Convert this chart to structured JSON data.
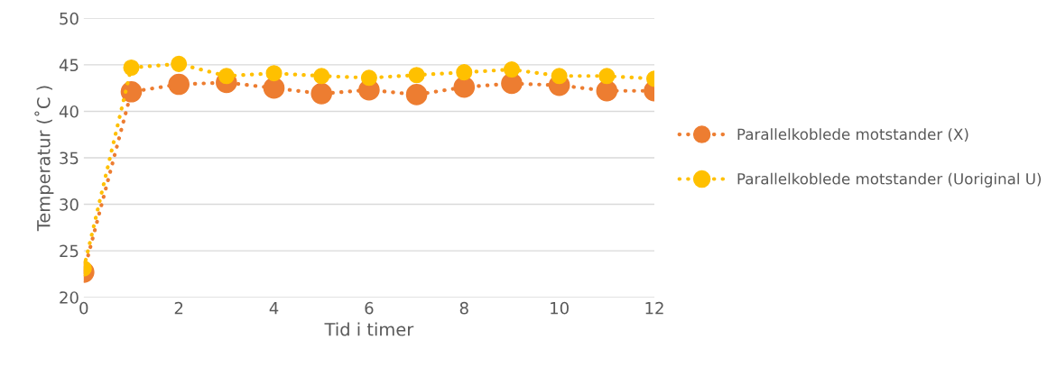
{
  "chart_data": {
    "type": "line",
    "xlabel": "Tid i timer",
    "ylabel": "Temperatur (˚C )",
    "x": [
      0,
      1,
      2,
      3,
      4,
      5,
      6,
      7,
      8,
      9,
      10,
      11,
      12
    ],
    "series": [
      {
        "name": "Parallelkoblede motstander (X)",
        "color": "#ed7d31",
        "values": [
          22.7,
          42.1,
          42.9,
          43.1,
          42.5,
          41.9,
          42.3,
          41.8,
          42.6,
          43.0,
          42.8,
          42.2,
          42.2
        ]
      },
      {
        "name": "Parallelkoblede motstander (Uoriginal U)",
        "color": "#ffc000",
        "values": [
          23.1,
          44.7,
          45.1,
          43.8,
          44.1,
          43.8,
          43.6,
          43.9,
          44.2,
          44.5,
          43.8,
          43.8,
          43.5
        ]
      }
    ],
    "xlim": [
      0,
      12
    ],
    "xticks": [
      0,
      2,
      4,
      6,
      8,
      10,
      12
    ],
    "ylim": [
      20,
      50
    ],
    "yticks": [
      20,
      25,
      30,
      35,
      40,
      45,
      50
    ],
    "grid": "y",
    "legend": "right",
    "marker": "circle",
    "line_style": "dotted"
  }
}
